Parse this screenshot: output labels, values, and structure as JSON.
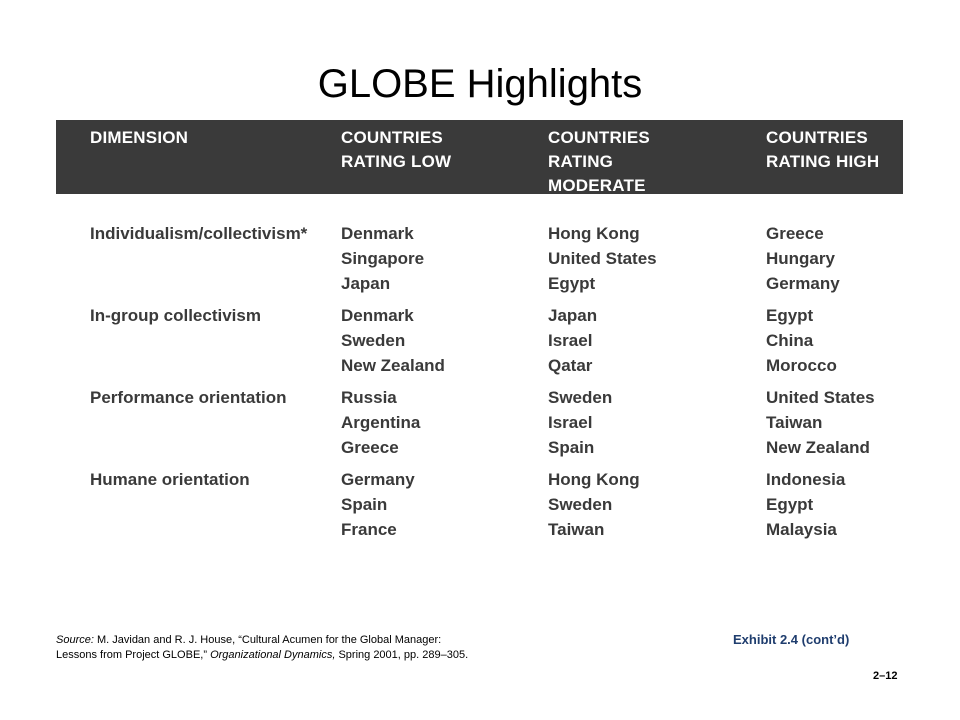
{
  "title": "GLOBE Highlights",
  "header": {
    "dimension": "DIMENSION",
    "low": "COUNTRIES\nRATING LOW",
    "moderate": "COUNTRIES\nRATING\nMODERATE",
    "high": "COUNTRIES\nRATING HIGH"
  },
  "rows": [
    {
      "dimension": "Individualism/collectivism*",
      "low": [
        "Denmark",
        "Singapore",
        "Japan"
      ],
      "moderate": [
        "Hong Kong",
        "United States",
        "Egypt"
      ],
      "high": [
        "Greece",
        "Hungary",
        "Germany"
      ]
    },
    {
      "dimension": "In-group collectivism",
      "low": [
        "Denmark",
        "Sweden",
        "New Zealand"
      ],
      "moderate": [
        "Japan",
        "Israel",
        "Qatar"
      ],
      "high": [
        "Egypt",
        "China",
        "Morocco"
      ]
    },
    {
      "dimension": "Performance orientation",
      "low": [
        "Russia",
        "Argentina",
        "Greece"
      ],
      "moderate": [
        "Sweden",
        "Israel",
        "Spain"
      ],
      "high": [
        "United States",
        "Taiwan",
        "New Zealand"
      ]
    },
    {
      "dimension": "Humane orientation",
      "low": [
        "Germany",
        "Spain",
        "France"
      ],
      "moderate": [
        "Hong Kong",
        "Sweden",
        "Taiwan"
      ],
      "high": [
        "Indonesia",
        "Egypt",
        "Malaysia"
      ]
    }
  ],
  "source": {
    "label": "Source:",
    "line1_a": " M. Javidan and R.  J. House, “Cultural Acumen for the Global Manager:",
    "line2_a": "Lessons from Project GLOBE,” ",
    "journal": "Organizational Dynamics,",
    "line2_b": " Spring 2001, pp. 289–305."
  },
  "exhibit": "Exhibit 2.4 (cont’d)",
  "page_number": "2–12"
}
